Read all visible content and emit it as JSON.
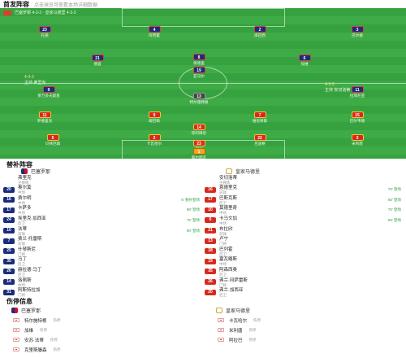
{
  "header": {
    "title": "首发阵容",
    "subtitle": "点击球员可查看本场详细数据"
  },
  "pitch": {
    "meta_label": "巴塞罗那 4-3-3 · 皇家马德里 4-3-3",
    "home": {
      "coach": "主帅  弗里克",
      "formation": "4-3-3"
    },
    "away": {
      "coach": "主帅  安切洛蒂",
      "formation": "4-3-3"
    },
    "home_players": [
      {
        "num": "23",
        "name": "孔德",
        "cls": "home"
      },
      {
        "num": "4",
        "name": "阿劳霍",
        "cls": "home"
      },
      {
        "num": "2",
        "name": "库巴西",
        "cls": "home"
      },
      {
        "num": "3",
        "name": "巴尔德",
        "cls": "home"
      },
      {
        "num": "21",
        "name": "德容",
        "cls": "home"
      },
      {
        "num": "8",
        "name": "佩德里",
        "cls": "home"
      },
      {
        "num": "6",
        "name": "加维",
        "cls": "home"
      },
      {
        "num": "19",
        "name": "亚马尔",
        "cls": "home"
      },
      {
        "num": "9",
        "name": "莱万多夫斯基",
        "cls": "home"
      },
      {
        "num": "11",
        "name": "拉菲尼亚",
        "cls": "home"
      },
      {
        "num": "13",
        "name": "特尔施特根",
        "cls": "gk-home"
      }
    ],
    "away_players": [
      {
        "num": "11",
        "name": "罗德里戈",
        "cls": "away"
      },
      {
        "num": "9",
        "name": "姆巴佩",
        "cls": "away"
      },
      {
        "num": "7",
        "name": "维尼修斯",
        "cls": "away"
      },
      {
        "num": "15",
        "name": "巴尔韦德",
        "cls": "away"
      },
      {
        "num": "14",
        "name": "琼阿梅尼",
        "cls": "away"
      },
      {
        "num": "5",
        "name": "贝林厄姆",
        "cls": "away"
      },
      {
        "num": "2",
        "name": "卡瓦哈尔",
        "cls": "away"
      },
      {
        "num": "22",
        "name": "吕迪格",
        "cls": "away"
      },
      {
        "num": "3",
        "name": "米利唐",
        "cls": "away"
      },
      {
        "num": "23",
        "name": "门迪",
        "cls": "away"
      },
      {
        "num": "1",
        "name": "库尔图瓦",
        "cls": "gk-away"
      }
    ]
  },
  "subs": {
    "title": "替补阵容",
    "home_team": "巴塞罗那",
    "away_team": "皇家马德里",
    "home": [
      {
        "num": "",
        "name": "弗里克",
        "meta": "主教练",
        "time": ""
      },
      {
        "num": "20",
        "name": "奥尔莫",
        "meta": "中场",
        "time": ""
      },
      {
        "num": "16",
        "name": "费尔明",
        "meta": "中场",
        "time": "6' 替补登场"
      },
      {
        "num": "17",
        "name": "卡萨多",
        "meta": "中场",
        "time": "88' 登场"
      },
      {
        "num": "24",
        "name": "埃里克·加西亚",
        "meta": "后卫",
        "time": "75' 登场"
      },
      {
        "num": "10",
        "name": "法蒂",
        "meta": "前锋",
        "time": "90' 登场"
      },
      {
        "num": "7",
        "name": "费兰·托雷斯",
        "meta": "前锋",
        "time": ""
      },
      {
        "num": "25",
        "name": "什琴斯尼",
        "meta": "门将",
        "time": ""
      },
      {
        "num": "35",
        "name": "马丁",
        "meta": "后卫",
        "time": ""
      },
      {
        "num": "26",
        "name": "赫拉德·马丁",
        "meta": "后卫",
        "time": ""
      },
      {
        "num": "14",
        "name": "洛佩斯",
        "meta": "中场",
        "time": ""
      },
      {
        "num": "31",
        "name": "阿斯特拉加",
        "meta": "门将",
        "time": ""
      }
    ],
    "away": [
      {
        "num": "",
        "name": "安切洛蒂",
        "meta": "主教练",
        "time": ""
      },
      {
        "num": "16",
        "name": "恩德里克",
        "meta": "前锋",
        "time": "70' 登场"
      },
      {
        "num": "17",
        "name": "巴斯克斯",
        "meta": "后卫",
        "time": "65' 登场"
      },
      {
        "num": "10",
        "name": "莫德里奇",
        "meta": "中场",
        "time": "70' 登场"
      },
      {
        "num": "6",
        "name": "卡马文加",
        "meta": "中场",
        "time": "83' 登场"
      },
      {
        "num": "21",
        "name": "布拉欣",
        "meta": "前锋",
        "time": ""
      },
      {
        "num": "13",
        "name": "卢宁",
        "meta": "门将",
        "time": ""
      },
      {
        "num": "18",
        "name": "巴列霍",
        "meta": "后卫",
        "time": ""
      },
      {
        "num": "19",
        "name": "塞瓦略斯",
        "meta": "中场",
        "time": ""
      },
      {
        "num": "35",
        "name": "阿森西奥",
        "meta": "后卫",
        "time": ""
      },
      {
        "num": "26",
        "name": "弗兰·冈萨雷斯",
        "meta": "门将",
        "time": ""
      },
      {
        "num": "20",
        "name": "弗兰·加西亚",
        "meta": "后卫",
        "time": ""
      }
    ]
  },
  "injuries": {
    "title": "伤停信息",
    "home_team": "巴塞罗那",
    "away_team": "皇家马德里",
    "home": [
      {
        "name": "特尔施特根",
        "meta": "伤停"
      },
      {
        "name": "加维",
        "meta": "伤停"
      },
      {
        "name": "安苏·法蒂",
        "meta": "伤停"
      },
      {
        "name": "克里斯滕森",
        "meta": "伤停"
      }
    ],
    "away": [
      {
        "name": "卡瓦哈尔",
        "meta": "伤停"
      },
      {
        "name": "米利唐",
        "meta": "伤停"
      },
      {
        "name": "阿拉巴",
        "meta": "伤停"
      }
    ]
  }
}
